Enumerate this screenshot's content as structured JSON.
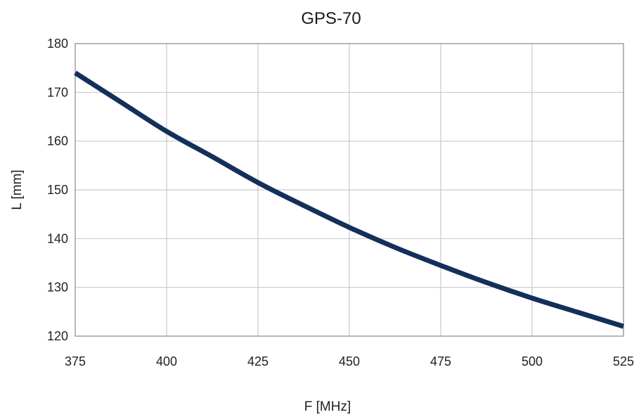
{
  "chart_data": {
    "type": "line",
    "title": "GPS-70",
    "xlabel": "F [MHz]",
    "ylabel": "L [mm]",
    "xlim": [
      375,
      525
    ],
    "ylim": [
      120,
      180
    ],
    "x_ticks": [
      375,
      400,
      425,
      450,
      475,
      500,
      525
    ],
    "x_tick_labels": [
      "375",
      "400",
      "425",
      "450",
      "475",
      "500",
      "525"
    ],
    "y_ticks": [
      120,
      130,
      140,
      150,
      160,
      170,
      180
    ],
    "y_tick_labels": [
      "120",
      "130",
      "140",
      "150",
      "160",
      "170",
      "180"
    ],
    "grid": true,
    "series": [
      {
        "color": "#12305a",
        "x": [
          375,
          387.5,
          400,
          412.5,
          425,
          437.5,
          450,
          462.5,
          475,
          487.5,
          500,
          512.5,
          525
        ],
        "y": [
          174.0,
          168.0,
          162.0,
          156.8,
          151.5,
          146.8,
          142.3,
          138.2,
          134.5,
          131.0,
          127.8,
          124.9,
          122.0
        ]
      }
    ]
  }
}
